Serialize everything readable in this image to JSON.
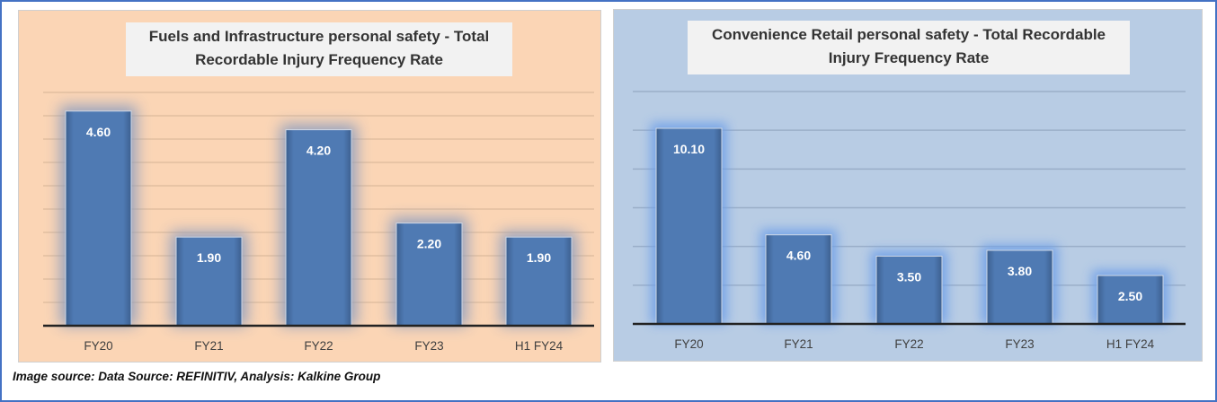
{
  "chart_data": [
    {
      "type": "bar",
      "title": "Fuels and Infrastructure personal safety - Total Recordable Injury Frequency Rate",
      "categories": [
        "FY20",
        "FY21",
        "FY22",
        "FY23",
        "H1 FY24"
      ],
      "values": [
        4.6,
        1.9,
        4.2,
        2.2,
        1.9
      ],
      "labels": [
        "4.60",
        "1.90",
        "4.20",
        "2.20",
        "1.90"
      ],
      "xlabel": "",
      "ylabel": "",
      "ylim": [
        0,
        5
      ],
      "grid_step": 0.5,
      "grid": true,
      "background": "#fbd5b5",
      "bar_color": "#4f7ab3",
      "glow_color": "#8a9cc0"
    },
    {
      "type": "bar",
      "title": "Convenience Retail personal safety - Total Recordable Injury Frequency Rate",
      "categories": [
        "FY20",
        "FY21",
        "FY22",
        "FY23",
        "H1 FY24"
      ],
      "values": [
        10.1,
        4.6,
        3.5,
        3.8,
        2.5
      ],
      "labels": [
        "10.10",
        "4.60",
        "3.50",
        "3.80",
        "2.50"
      ],
      "xlabel": "",
      "ylabel": "",
      "ylim": [
        0,
        12
      ],
      "grid_step": 2,
      "grid": true,
      "background": "#b8cce4",
      "bar_color": "#4f7ab3",
      "glow_color": "#6fa0e8"
    }
  ],
  "source": "Image source: Data Source: REFINITIV, Analysis: Kalkine Group"
}
